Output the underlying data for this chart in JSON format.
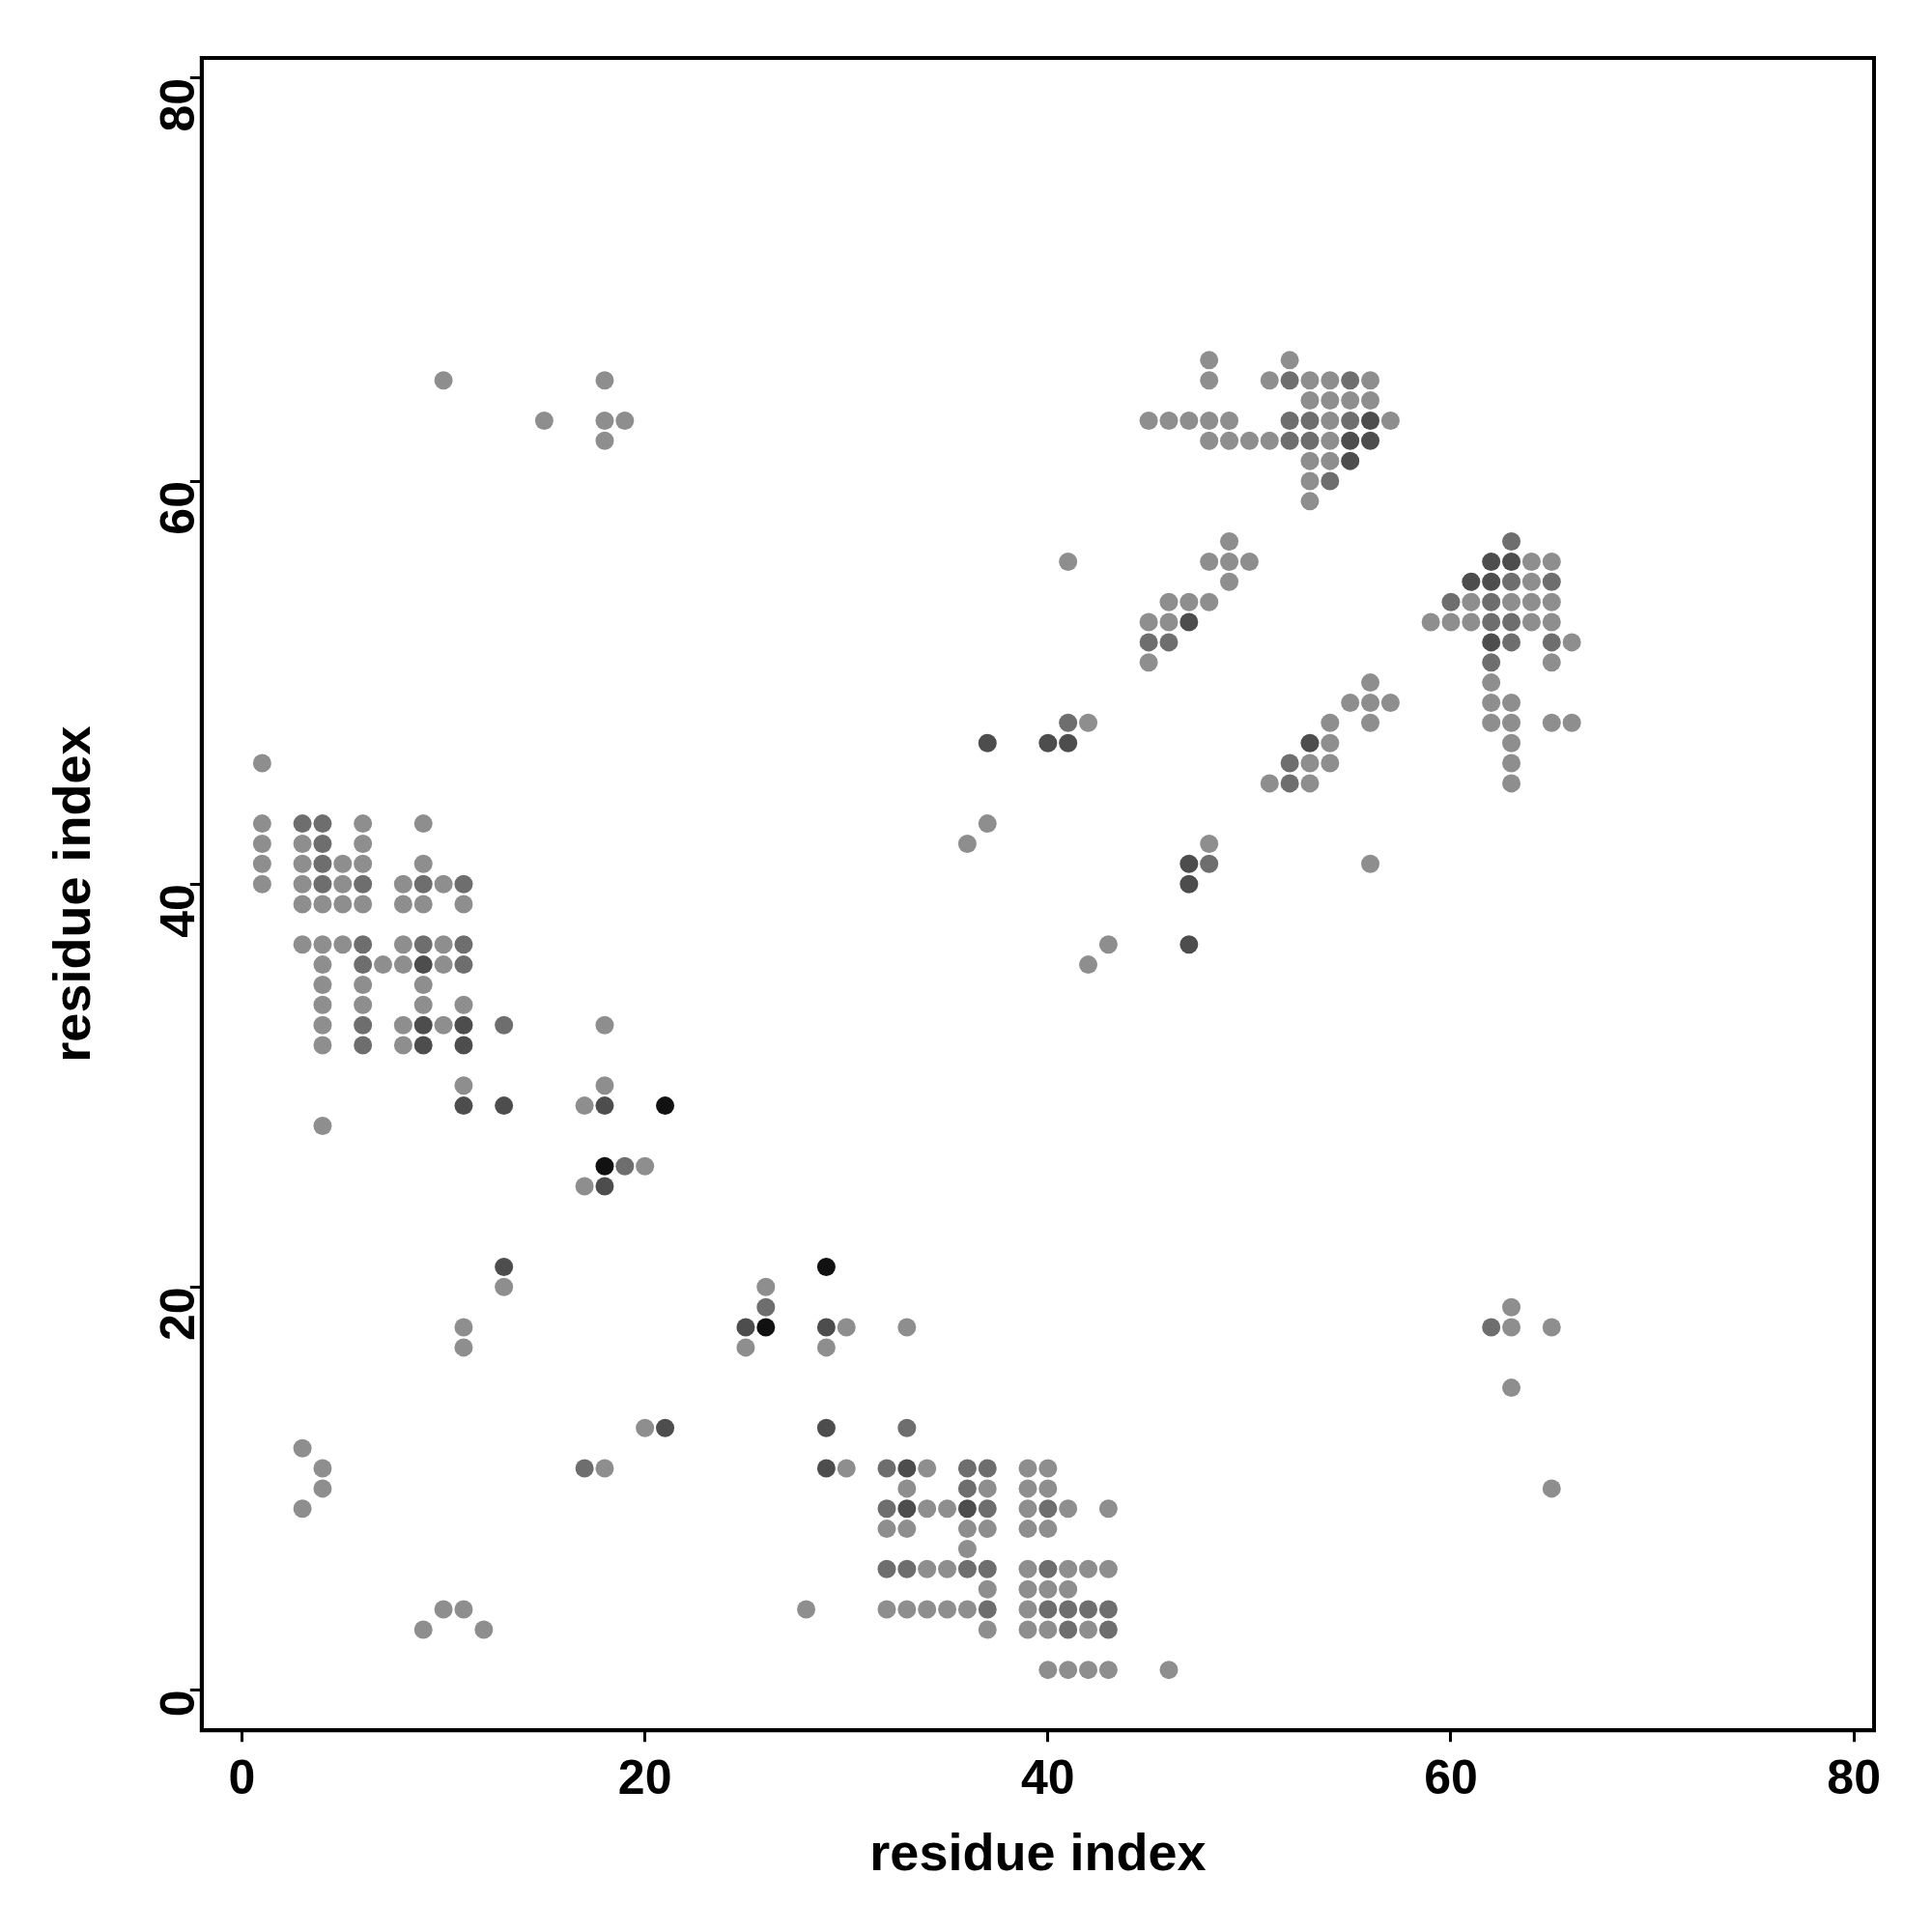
{
  "chart_data": {
    "type": "scatter",
    "xlabel": "residue index",
    "ylabel": "residue index",
    "xlim": [
      -2,
      81
    ],
    "ylim": [
      -2,
      81
    ],
    "xticks": [
      0,
      20,
      40,
      60,
      80
    ],
    "yticks": [
      0,
      20,
      40,
      60,
      80
    ],
    "grid": false,
    "legend": false,
    "marker": "circle",
    "series": [
      {
        "color": "#8e8e8e",
        "x": [
          1,
          1,
          1,
          1,
          1,
          3,
          3,
          3,
          3,
          3,
          4,
          4,
          4,
          4,
          4,
          4,
          4,
          4,
          5,
          5,
          5,
          5,
          6,
          6,
          6,
          6,
          6,
          6,
          7,
          8,
          8,
          8,
          8,
          8,
          8,
          9,
          9,
          9,
          9,
          9,
          10,
          10,
          10,
          10,
          11,
          11,
          11,
          18,
          18,
          17,
          20,
          17,
          13,
          26,
          30,
          25,
          29,
          20,
          18,
          30,
          11,
          11,
          33,
          3,
          4,
          4,
          3,
          9,
          10,
          11,
          12,
          28,
          34,
          39,
          40,
          33,
          37,
          39,
          40,
          34,
          35,
          39,
          41,
          43,
          32,
          33,
          36,
          37,
          39,
          40,
          36,
          34,
          35,
          39,
          41,
          42,
          43,
          37,
          39,
          40,
          41,
          32,
          33,
          34,
          35,
          36,
          39,
          37,
          39,
          40,
          42,
          40,
          41,
          42,
          43,
          46,
          48,
          52,
          48,
          51,
          53,
          54,
          56,
          53,
          54,
          55,
          56,
          45,
          46,
          47,
          48,
          49,
          54,
          57,
          48,
          49,
          50,
          51,
          54,
          53,
          54,
          53,
          53,
          64,
          65,
          64,
          61,
          63,
          64,
          65,
          59,
          60,
          61,
          64,
          65,
          66,
          65,
          62,
          62,
          63,
          62,
          63,
          65,
          66,
          63,
          63,
          63,
          57,
          49,
          41,
          48,
          49,
          50,
          49,
          46,
          47,
          48,
          45,
          46,
          45,
          56,
          55,
          56,
          42,
          54,
          56,
          54,
          53,
          54,
          51,
          53,
          37,
          36,
          48,
          56,
          43,
          42,
          63,
          63,
          65,
          63,
          65,
          10,
          15,
          18,
          18,
          18,
          19
        ],
        "values": [
          46,
          43,
          42,
          41,
          40,
          42,
          41,
          40,
          39,
          37,
          39,
          37,
          36,
          35,
          34,
          33,
          32,
          28,
          41,
          40,
          39,
          37,
          43,
          42,
          41,
          39,
          35,
          34,
          36,
          40,
          39,
          37,
          36,
          33,
          32,
          43,
          41,
          39,
          35,
          34,
          40,
          37,
          36,
          33,
          39,
          34,
          30,
          33,
          30,
          29,
          26,
          25,
          20,
          20,
          18,
          17,
          17,
          13,
          11,
          11,
          18,
          17,
          18,
          12,
          11,
          10,
          9,
          3,
          4,
          4,
          3,
          4,
          11,
          11,
          11,
          10,
          10,
          10,
          10,
          9,
          9,
          9,
          9,
          9,
          8,
          8,
          8,
          8,
          8,
          8,
          7,
          6,
          6,
          6,
          6,
          6,
          6,
          5,
          5,
          5,
          5,
          4,
          4,
          4,
          4,
          4,
          4,
          3,
          3,
          3,
          3,
          1,
          1,
          1,
          1,
          1,
          66,
          66,
          65,
          65,
          65,
          65,
          65,
          64,
          64,
          64,
          64,
          63,
          63,
          63,
          63,
          63,
          63,
          63,
          62,
          62,
          62,
          62,
          62,
          61,
          61,
          60,
          59,
          56,
          56,
          55,
          54,
          54,
          54,
          54,
          53,
          53,
          53,
          53,
          53,
          52,
          51,
          50,
          49,
          49,
          48,
          48,
          48,
          48,
          47,
          46,
          45,
          49,
          57,
          56,
          56,
          56,
          56,
          55,
          54,
          54,
          54,
          53,
          53,
          51,
          50,
          49,
          49,
          48,
          48,
          48,
          47,
          46,
          46,
          45,
          45,
          43,
          42,
          42,
          41,
          37,
          36,
          18,
          19,
          18,
          15,
          10,
          65,
          63,
          65,
          63,
          62,
          63
        ]
      },
      {
        "color": "#6e6e6e",
        "x": [
          3,
          4,
          4,
          4,
          4,
          6,
          6,
          6,
          6,
          6,
          9,
          9,
          11,
          11,
          11,
          13,
          19,
          26,
          17,
          33,
          32,
          36,
          37,
          36,
          32,
          37,
          40,
          32,
          33,
          36,
          37,
          40,
          37,
          40,
          41,
          42,
          43,
          41,
          43,
          52,
          55,
          52,
          53,
          55,
          52,
          53,
          54,
          63,
          63,
          65,
          60,
          62,
          62,
          63,
          63,
          65,
          62,
          45,
          46,
          41,
          52,
          52,
          48,
          62
        ],
        "values": [
          43,
          43,
          42,
          41,
          40,
          40,
          37,
          36,
          33,
          32,
          40,
          37,
          40,
          37,
          36,
          33,
          26,
          19,
          11,
          13,
          11,
          11,
          11,
          10,
          9,
          9,
          9,
          6,
          6,
          6,
          6,
          6,
          4,
          4,
          4,
          4,
          4,
          3,
          3,
          65,
          65,
          63,
          63,
          63,
          62,
          62,
          60,
          57,
          55,
          55,
          54,
          54,
          53,
          53,
          52,
          52,
          51,
          52,
          52,
          48,
          46,
          45,
          41,
          18
        ]
      },
      {
        "color": "#4d4d4d",
        "x": [
          9,
          9,
          11,
          11,
          9,
          11,
          13,
          18,
          18,
          13,
          25,
          29,
          21,
          29,
          29,
          33,
          33,
          36,
          56,
          55,
          56,
          55,
          62,
          63,
          61,
          62,
          62,
          47,
          37,
          40,
          41,
          53,
          47,
          47,
          47
        ],
        "values": [
          36,
          33,
          33,
          32,
          32,
          29,
          29,
          29,
          25,
          21,
          18,
          18,
          13,
          13,
          11,
          11,
          9,
          9,
          63,
          62,
          62,
          61,
          56,
          56,
          55,
          55,
          52,
          53,
          47,
          47,
          47,
          47,
          41,
          40,
          37
        ]
      },
      {
        "color": "#111111",
        "x": [
          21,
          18,
          29,
          26
        ],
        "values": [
          29,
          26,
          21,
          18
        ]
      }
    ]
  }
}
